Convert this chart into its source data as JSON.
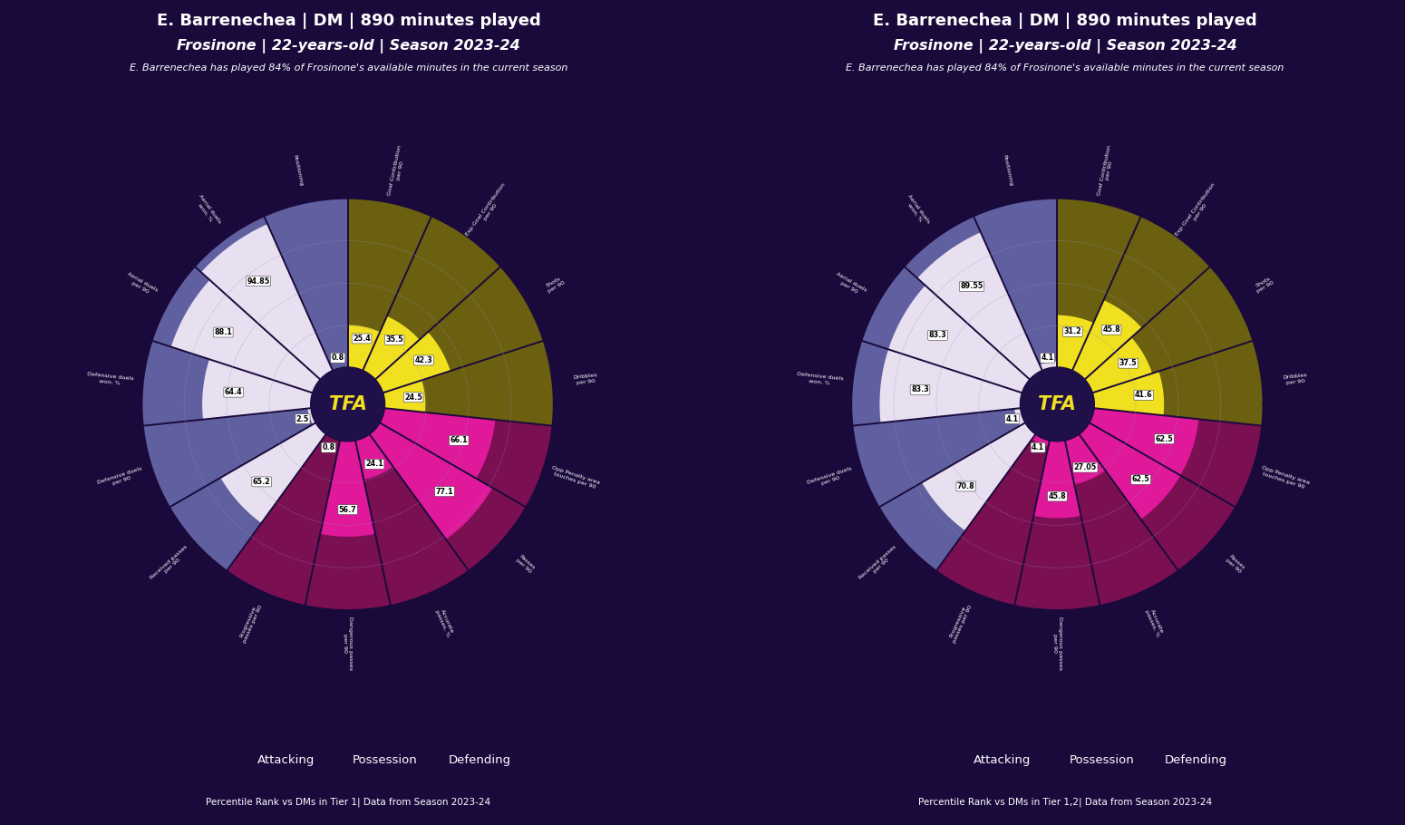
{
  "background_color": "#1a0a3c",
  "title_line1": "E. Barrenechea | DM | 890 minutes played",
  "title_line2": "Frosinone | 22-years-old | Season 2023-24",
  "subtitle": "E. Barrenechea has played 84% of Frosinone's available minutes in the current season",
  "center_text": "TFA",
  "charts": [
    {
      "footnote": "Percentile Rank vs DMs in Tier 1| Data from Season 2023-24",
      "categories": [
        "Goal Contribution\nper 90",
        "Exp Goal Contribution\nper 90",
        "Shots\nper 90",
        "Dribbles\nper 90",
        "Opp Penalty area\ntouches per 90",
        "Passes\nper 90",
        "Accurate\npasses, %",
        "Dangerous passes\nper 90",
        "Progressive\npasses per 90",
        "Received passes\nper 90",
        "Defensive duels\nper 90",
        "Defensive duels\nwon, %",
        "Aerial duels\nper 90",
        "Aerial duels\nwon, %",
        "Positioning"
      ],
      "values": [
        25.4,
        35.5,
        42.3,
        24.5,
        66.1,
        77.1,
        24.1,
        56.7,
        0.8,
        65.2,
        2.5,
        64.4,
        88.1,
        94.85,
        0.8
      ],
      "category_types": [
        "attacking",
        "attacking",
        "attacking",
        "attacking",
        "possession",
        "possession",
        "possession",
        "possession",
        "possession",
        "defending",
        "defending",
        "defending",
        "defending",
        "defending",
        "defending"
      ]
    },
    {
      "footnote": "Percentile Rank vs DMs in Tier 1,2| Data from Season 2023-24",
      "categories": [
        "Goal Contribution\nper 90",
        "Exp Goal Contribution\nper 90",
        "Shots\nper 90",
        "Dribbles\nper 90",
        "Opp Penalty area\ntouches per 90",
        "Passes\nper 90",
        "Accurate\npasses, %",
        "Dangerous passes\nper 90",
        "Progressive\npasses per 90",
        "Received passes\nper 90",
        "Defensive duels\nper 90",
        "Defensive duels\nwon, %",
        "Aerial duels\nper 90",
        "Aerial duels\nwon, %",
        "Positioning"
      ],
      "values": [
        31.2,
        45.8,
        37.5,
        41.6,
        62.5,
        62.5,
        27.05,
        45.8,
        4.1,
        70.8,
        4.1,
        83.3,
        83.3,
        89.55,
        4.1
      ],
      "category_types": [
        "attacking",
        "attacking",
        "attacking",
        "attacking",
        "possession",
        "possession",
        "possession",
        "possession",
        "possession",
        "defending",
        "defending",
        "defending",
        "defending",
        "defending",
        "defending"
      ]
    }
  ],
  "type_colors": {
    "attacking": {
      "fg": "#f0e020",
      "bg": "#6b6010"
    },
    "possession": {
      "fg": "#e0189a",
      "bg": "#7a0f52"
    },
    "defending": {
      "fg": "#e8e0f0",
      "bg": "#6060a0"
    }
  },
  "legend": [
    {
      "label": "Attacking",
      "color": "#f0e020"
    },
    {
      "label": "Possession",
      "color": "#e0189a"
    },
    {
      "label": "Defending",
      "color": "#d8d0e8"
    }
  ]
}
